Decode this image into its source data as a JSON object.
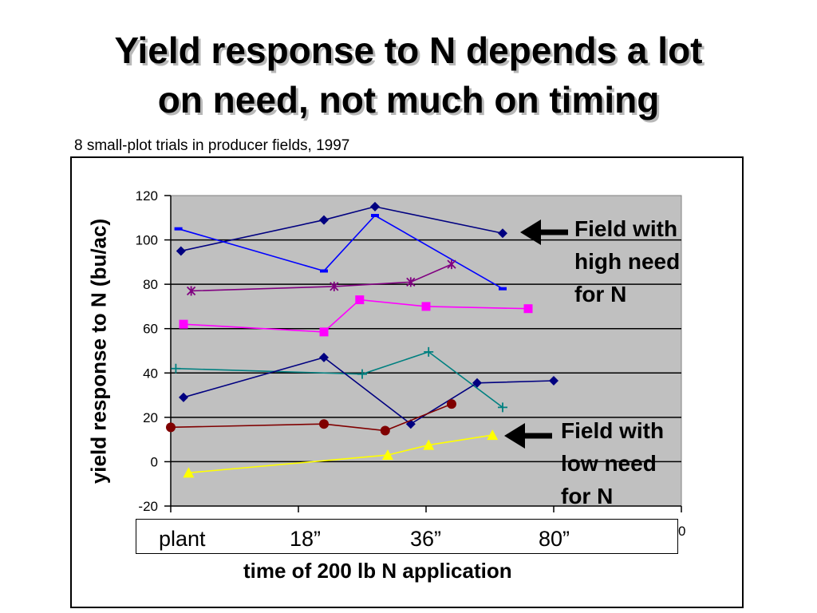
{
  "slide": {
    "title_lines": [
      "Yield response to N depends a lot",
      "on need, not much on timing"
    ],
    "subtitle": "8 small-plot trials in producer fields, 1997"
  },
  "annotations": {
    "high_need": [
      "Field with",
      "high need",
      "for N"
    ],
    "low_need": [
      "Field with",
      "low need",
      "for N"
    ]
  },
  "timing_labels": [
    "plant",
    "18”",
    "36”",
    "80”"
  ],
  "stray_tick": "0",
  "chart_data": {
    "type": "line",
    "title": "",
    "xlabel": "time of 200 lb N application",
    "ylabel": "yield response to N (bu/ac)",
    "ylim": [
      -20,
      120
    ],
    "yticks": [
      "120",
      "100",
      "80",
      "60",
      "40",
      "20",
      "0",
      "-20"
    ],
    "xlim": [
      0,
      100
    ],
    "grid": true,
    "legend": "none",
    "series": [
      {
        "color": "#000080",
        "marker": "diamond",
        "x": [
          2,
          30,
          40,
          65
        ],
        "y": [
          95,
          109,
          115,
          103
        ]
      },
      {
        "color": "#0000ff",
        "marker": "dash",
        "x": [
          1.5,
          30,
          40,
          65
        ],
        "y": [
          105,
          86,
          111,
          78
        ]
      },
      {
        "color": "#800080",
        "marker": "star",
        "x": [
          4,
          32,
          47,
          55
        ],
        "y": [
          77,
          79,
          81,
          89
        ]
      },
      {
        "color": "#ff00ff",
        "marker": "square",
        "x": [
          2.5,
          30,
          37,
          50,
          70
        ],
        "y": [
          62,
          58.5,
          73,
          70,
          69
        ]
      },
      {
        "color": "#008080",
        "marker": "plus",
        "x": [
          1,
          37.5,
          50.5,
          65
        ],
        "y": [
          42,
          39.5,
          49.5,
          24.5
        ]
      },
      {
        "color": "#000080",
        "marker": "diamond",
        "x": [
          2.5,
          30,
          47,
          60,
          75
        ],
        "y": [
          29,
          47,
          17,
          35.5,
          36.5
        ]
      },
      {
        "color": "#800000",
        "marker": "circle",
        "x": [
          0,
          30,
          42,
          55
        ],
        "y": [
          15.5,
          17,
          14,
          26
        ]
      },
      {
        "color": "#ffff00",
        "marker": "triangle",
        "x": [
          3.5,
          42.5,
          50.5,
          63
        ],
        "y": [
          -5,
          3,
          7.5,
          12
        ]
      }
    ]
  }
}
